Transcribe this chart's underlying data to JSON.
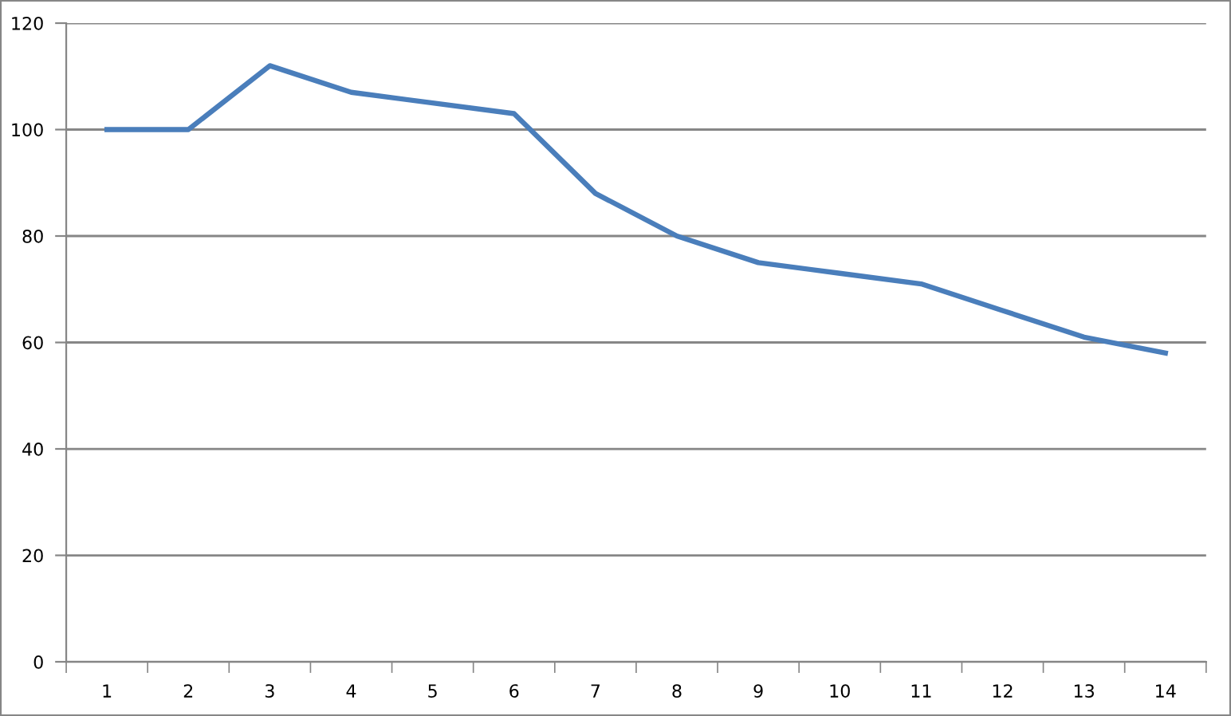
{
  "chart_data": {
    "type": "line",
    "categories": [
      "1",
      "2",
      "3",
      "4",
      "5",
      "6",
      "7",
      "8",
      "9",
      "10",
      "11",
      "12",
      "13",
      "14"
    ],
    "series": [
      {
        "color": "#4a7ebb",
        "values": [
          100,
          100,
          112,
          107,
          105,
          103,
          88,
          80,
          75,
          73,
          71,
          66,
          61,
          58
        ]
      }
    ],
    "ylim": [
      0,
      120
    ],
    "yticks": [
      0,
      20,
      40,
      60,
      80,
      100,
      120
    ],
    "grid": "y"
  }
}
